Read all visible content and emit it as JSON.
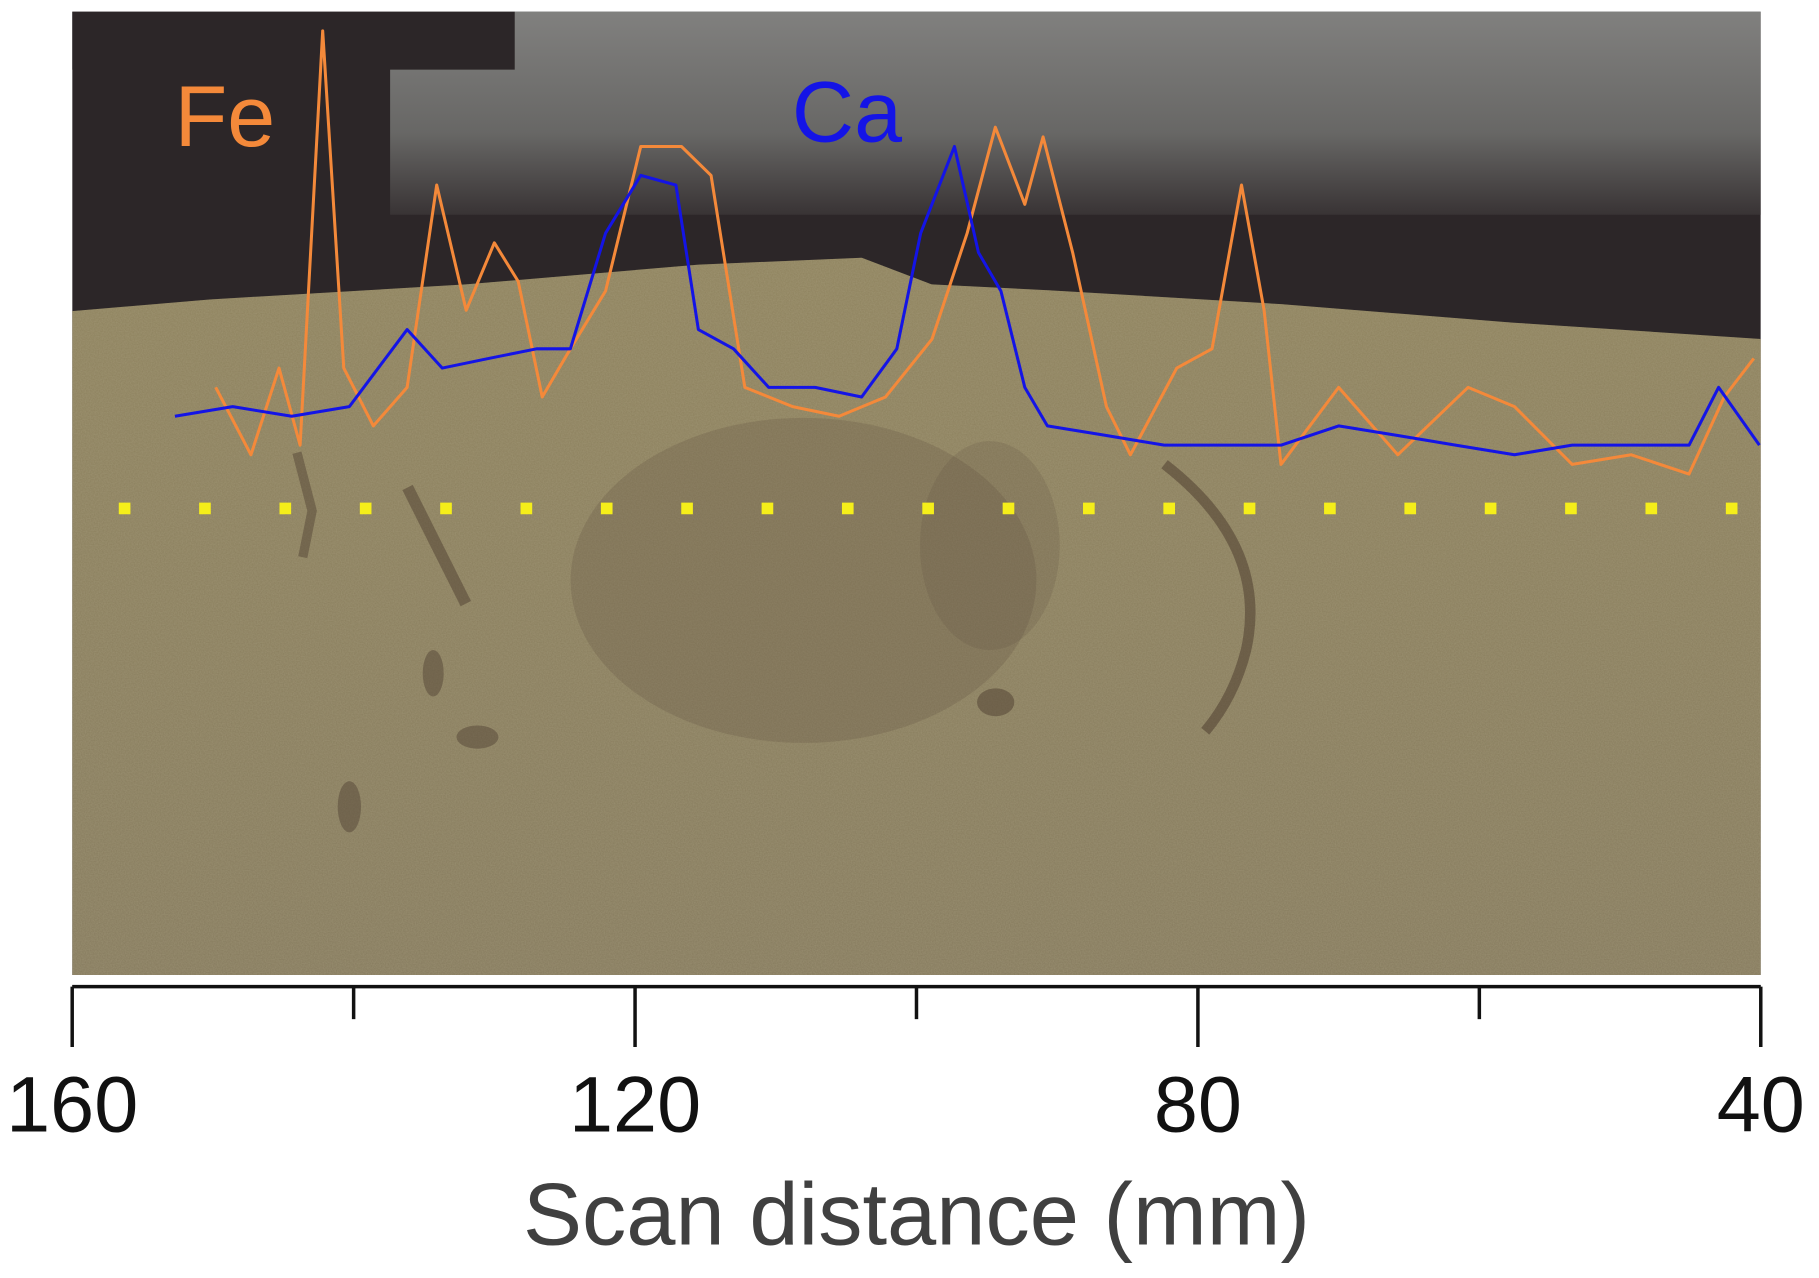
{
  "chart_data": {
    "type": "line",
    "xlabel": "Scan distance (mm)",
    "xlim": [
      160,
      40
    ],
    "xticks": [
      160,
      120,
      80,
      40
    ],
    "minor_xticks": [
      140,
      100,
      60
    ],
    "ylim": [
      0,
      100
    ],
    "series": [
      {
        "name": "Fe",
        "color": "#f4893a",
        "x": [
          149.8,
          147.3,
          145.3,
          143.8,
          142.2,
          140.7,
          138.6,
          136.2,
          134.1,
          132,
          130,
          128.3,
          126.6,
          124.6,
          122.1,
          119.6,
          116.7,
          114.6,
          112.2,
          108.8,
          105.5,
          102.2,
          98.9,
          96.4,
          94.4,
          92.3,
          91,
          88.9,
          86.5,
          84.8,
          81.5,
          79,
          76.9,
          75.3,
          74.1,
          70,
          65.8,
          60.8,
          57.5,
          53.4,
          49.2,
          45.1,
          42.6,
          40.5
        ],
        "values": [
          61,
          54,
          63,
          55,
          98,
          63,
          57,
          61,
          82,
          69,
          76,
          72,
          60,
          65,
          71,
          86,
          86,
          83,
          61,
          59,
          58,
          60,
          66,
          77,
          88,
          80,
          87,
          75,
          59,
          54,
          63,
          65,
          82,
          69,
          53,
          61,
          54,
          61,
          59,
          53,
          54,
          52,
          60,
          64
        ]
      },
      {
        "name": "Ca",
        "color": "#1414e6",
        "x": [
          152.7,
          148.6,
          144.4,
          140.3,
          136.2,
          133.7,
          130.4,
          127,
          124.6,
          122.1,
          119.6,
          117.1,
          115.5,
          113,
          110.5,
          107.2,
          103.9,
          101.4,
          99.7,
          97.3,
          95.6,
          94,
          92.3,
          90.7,
          86.5,
          82.4,
          78.2,
          74.1,
          70,
          65.8,
          61.7,
          57.5,
          53.4,
          49.2,
          45.1,
          43,
          40.1
        ],
        "values": [
          58,
          59,
          58,
          59,
          67,
          63,
          64,
          65,
          65,
          77,
          83,
          82,
          67,
          65,
          61,
          61,
          60,
          65,
          77,
          86,
          75,
          71,
          61,
          57,
          56,
          55,
          55,
          55,
          57,
          56,
          55,
          54,
          55,
          55,
          55,
          61,
          55
        ]
      }
    ]
  }
}
